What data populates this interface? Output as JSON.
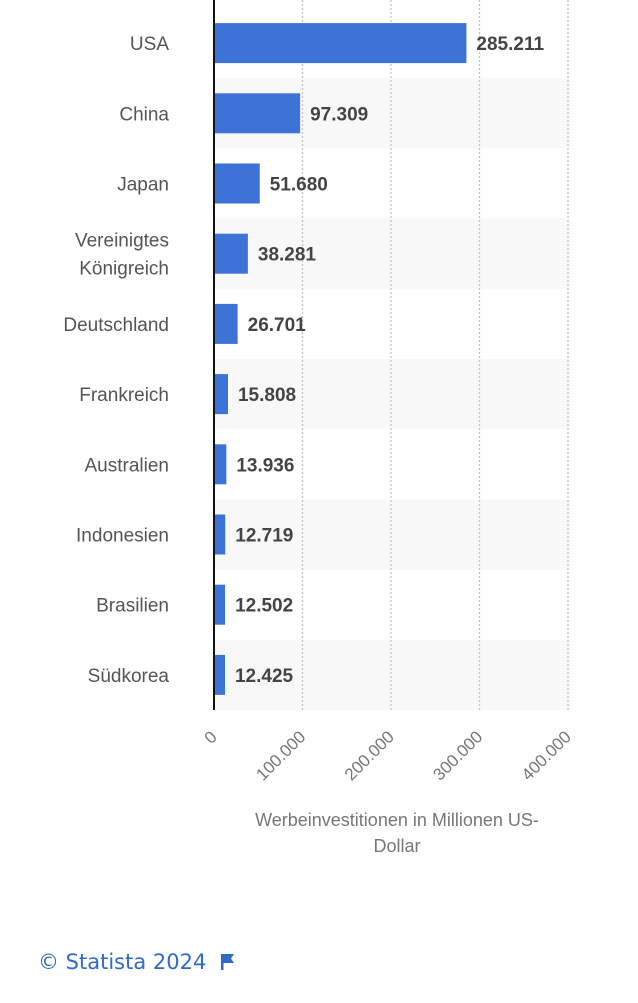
{
  "chart_data": {
    "type": "bar",
    "orientation": "horizontal",
    "categories": [
      "USA",
      "China",
      "Japan",
      "Vereinigtes Königreich",
      "Deutschland",
      "Frankreich",
      "Australien",
      "Indonesien",
      "Brasilien",
      "Südkorea"
    ],
    "values": [
      285211,
      97309,
      51680,
      38281,
      26701,
      15808,
      13936,
      12719,
      12502,
      12425
    ],
    "value_labels": [
      "285.211",
      "97.309",
      "51.680",
      "38.281",
      "26.701",
      "15.808",
      "13.936",
      "12.719",
      "12.502",
      "12.425"
    ],
    "xlabel": "Werbeinvestitionen in Millionen US-Dollar",
    "xlim": [
      0,
      400000
    ],
    "x_ticks": [
      0,
      100000,
      200000,
      300000,
      400000
    ],
    "x_tick_labels": [
      "0",
      "100.000",
      "200.000",
      "300.000",
      "400.000"
    ],
    "grid": "vertical dotted",
    "bar_color": "#3d72d6"
  },
  "footer": {
    "copyright": "© Statista 2024",
    "icon": "flag-icon"
  }
}
